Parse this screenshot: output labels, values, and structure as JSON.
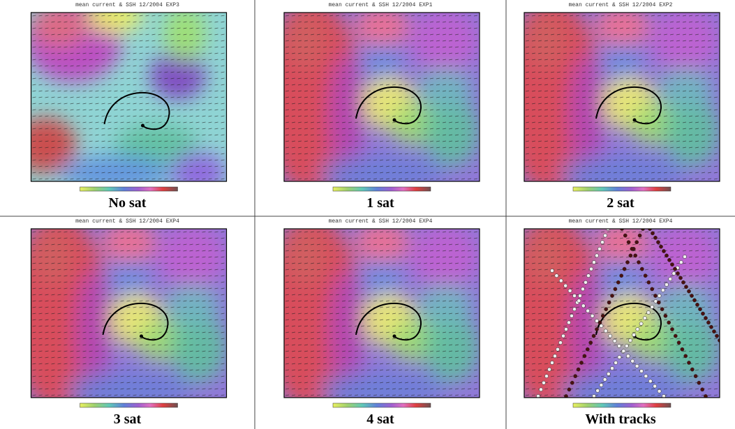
{
  "panels": [
    {
      "title": "mean current & SSH 12/2004 EXP3",
      "caption": "No sat"
    },
    {
      "title": "mean current & SSH 12/2004 EXP1",
      "caption": "1 sat"
    },
    {
      "title": "mean current & SSH 12/2004 EXP2",
      "caption": "2 sat"
    },
    {
      "title": "mean current & SSH 12/2004 EXP4",
      "caption": "3 sat"
    },
    {
      "title": "mean current & SSH 12/2004 EXP4",
      "caption": "4 sat"
    },
    {
      "title": "mean current & SSH 12/2004 EXP4",
      "caption": "With tracks"
    }
  ]
}
